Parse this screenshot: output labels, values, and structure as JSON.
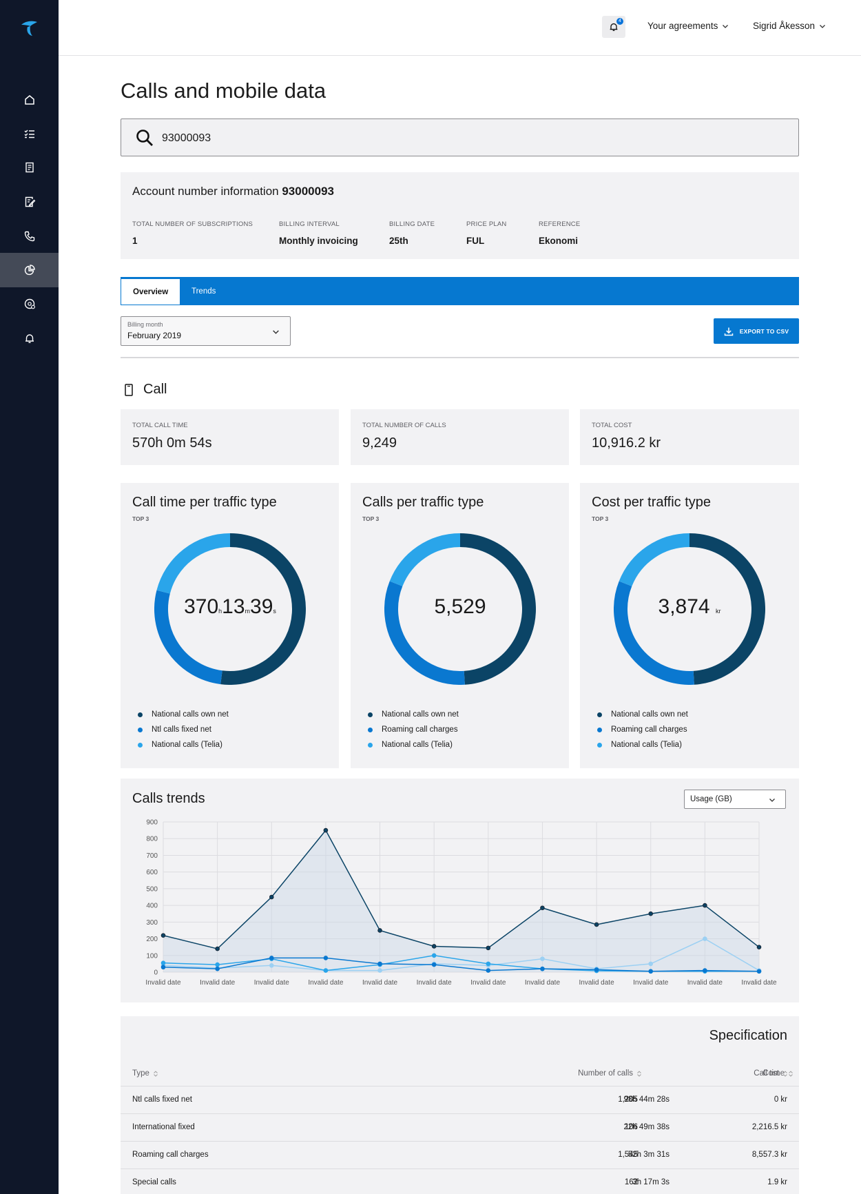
{
  "colors": {
    "sidebar": "#0f1729",
    "accent": "#0678d0",
    "dark_series": "#0b4466",
    "mid_series": "#0a78d0",
    "light_series": "#2aa5ea",
    "pale_series": "#9cd0f3"
  },
  "topbar": {
    "notification_count": "4",
    "agreements_label": "Your agreements",
    "user_label": "Sigrid Åkesson"
  },
  "page": {
    "title": "Calls and mobile data"
  },
  "search": {
    "value": "93000093"
  },
  "account": {
    "title_prefix": "Account number information",
    "number": "93000093",
    "fields": [
      {
        "label": "Total number of subscriptions",
        "value": "1"
      },
      {
        "label": "Billing interval",
        "value": "Monthly invoicing"
      },
      {
        "label": "Billing date",
        "value": "25th"
      },
      {
        "label": "Price plan",
        "value": "FUL"
      },
      {
        "label": "Reference",
        "value": "Ekonomi"
      }
    ]
  },
  "tabs": [
    {
      "label": "Overview",
      "active": true
    },
    {
      "label": "Trends",
      "active": false
    }
  ],
  "billing_month": {
    "label": "Billing month",
    "value": "February 2019"
  },
  "export": {
    "label": "EXPORT TO CSV"
  },
  "call_section": {
    "title": "Call"
  },
  "stats": [
    {
      "label": "Total call time",
      "value": "570h 0m 54s"
    },
    {
      "label": "Total number of calls",
      "value": "9,249"
    },
    {
      "label": "Total cost",
      "value": "10,916.2 kr"
    }
  ],
  "donuts": [
    {
      "title": "Call time per traffic type",
      "subtitle": "TOP 3",
      "center": {
        "h": "370",
        "h_unit": "h",
        "m": "13",
        "m_unit": "m",
        "s": "39",
        "s_unit": "s"
      },
      "segments": [
        {
          "fraction": 0.52
        },
        {
          "fraction": 0.27
        },
        {
          "fraction": 0.21
        }
      ],
      "legend": [
        "National calls own net",
        "Ntl calls fixed net",
        "National calls (Telia)"
      ]
    },
    {
      "title": "Calls per traffic type",
      "subtitle": "TOP 3",
      "center": {
        "value": "5,529"
      },
      "segments": [
        {
          "fraction": 0.49
        },
        {
          "fraction": 0.32
        },
        {
          "fraction": 0.19
        }
      ],
      "legend": [
        "National calls own net",
        "Roaming call charges",
        "National calls (Telia)"
      ]
    },
    {
      "title": "Cost per traffic type",
      "subtitle": "TOP 3",
      "center": {
        "value": "3,874",
        "unit": "kr"
      },
      "segments": [
        {
          "fraction": 0.49
        },
        {
          "fraction": 0.32
        },
        {
          "fraction": 0.19
        }
      ],
      "legend": [
        "National calls own net",
        "Roaming call charges",
        "National calls (Telia)"
      ]
    }
  ],
  "trends": {
    "title": "Calls trends",
    "metric_select": "Usage (GB)"
  },
  "chart_data": {
    "type": "line",
    "title": "Calls trends",
    "categories": [
      "Invalid date",
      "Invalid date",
      "Invalid date",
      "Invalid date",
      "Invalid date",
      "Invalid date",
      "Invalid date",
      "Invalid date",
      "Invalid date",
      "Invalid date",
      "Invalid date",
      "Invalid date"
    ],
    "ylim": [
      0,
      900
    ],
    "yticks": [
      0,
      100,
      200,
      300,
      400,
      500,
      600,
      700,
      800,
      900
    ],
    "grid": true,
    "series": [
      {
        "color": "#0b4466",
        "filled": true,
        "values": [
          220,
          140,
          450,
          850,
          250,
          155,
          145,
          385,
          285,
          350,
          400,
          150
        ]
      },
      {
        "color": "#0a78d0",
        "filled": false,
        "values": [
          30,
          20,
          85,
          85,
          50,
          45,
          10,
          20,
          15,
          5,
          10,
          5
        ]
      },
      {
        "color": "#2aa5ea",
        "filled": false,
        "values": [
          55,
          45,
          80,
          10,
          45,
          100,
          50,
          20,
          8,
          5,
          5,
          5
        ]
      },
      {
        "color": "#9cd0f3",
        "filled": false,
        "values": [
          40,
          25,
          40,
          10,
          10,
          50,
          40,
          80,
          20,
          50,
          200,
          10
        ]
      }
    ]
  },
  "specification": {
    "title": "Specification",
    "columns": [
      "Type",
      "Number of calls",
      "Call time",
      "Cost"
    ],
    "rows": [
      {
        "type": "Ntl calls fixed net",
        "calls": "1,205",
        "time": "98h 44m 28s",
        "cost": "0 kr"
      },
      {
        "type": "International fixed",
        "calls": "106",
        "time": "22h 49m 38s",
        "cost": "2,216.5 kr"
      },
      {
        "type": "Roaming call charges",
        "calls": "1,545",
        "time": "52h 3m 31s",
        "cost": "8,557.3 kr"
      },
      {
        "type": "Special calls",
        "calls": "162",
        "time": "3h 17m 3s",
        "cost": "1.9 kr"
      }
    ]
  }
}
